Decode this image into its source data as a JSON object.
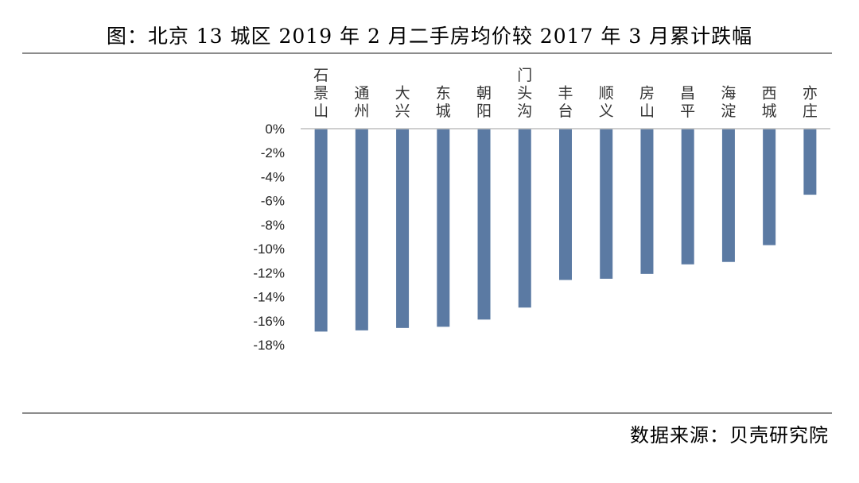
{
  "title": "图：北京 13 城区 2019 年 2 月二手房均价较 2017 年 3 月累计跌幅",
  "source": "数据来源：贝壳研究院",
  "colors": {
    "bar": "#5b7aa3",
    "axis": "#bfbfbf",
    "rule": "#8c8c8c"
  },
  "chart_data": {
    "type": "bar",
    "title": "图：北京 13 城区 2019 年 2 月二手房均价较 2017 年 3 月累计跌幅",
    "xlabel": "",
    "ylabel": "",
    "categories": [
      "石景山",
      "通州",
      "大兴",
      "东城",
      "朝阳",
      "门头沟",
      "丰台",
      "顺义",
      "房山",
      "昌平",
      "海淀",
      "西城",
      "亦庄"
    ],
    "values": [
      -16.9,
      -16.8,
      -16.6,
      -16.5,
      -15.9,
      -14.9,
      -12.6,
      -12.5,
      -12.1,
      -11.3,
      -11.1,
      -9.7,
      -5.5
    ],
    "ylim": [
      -18,
      0
    ],
    "yticks": [
      0,
      -2,
      -4,
      -6,
      -8,
      -10,
      -12,
      -14,
      -16,
      -18
    ],
    "ytick_labels": [
      "0%",
      "-2%",
      "-4%",
      "-6%",
      "-8%",
      "-10%",
      "-12%",
      "-14%",
      "-16%",
      "-18%"
    ],
    "category_axis_position": "top",
    "grid": false,
    "legend": "none"
  }
}
